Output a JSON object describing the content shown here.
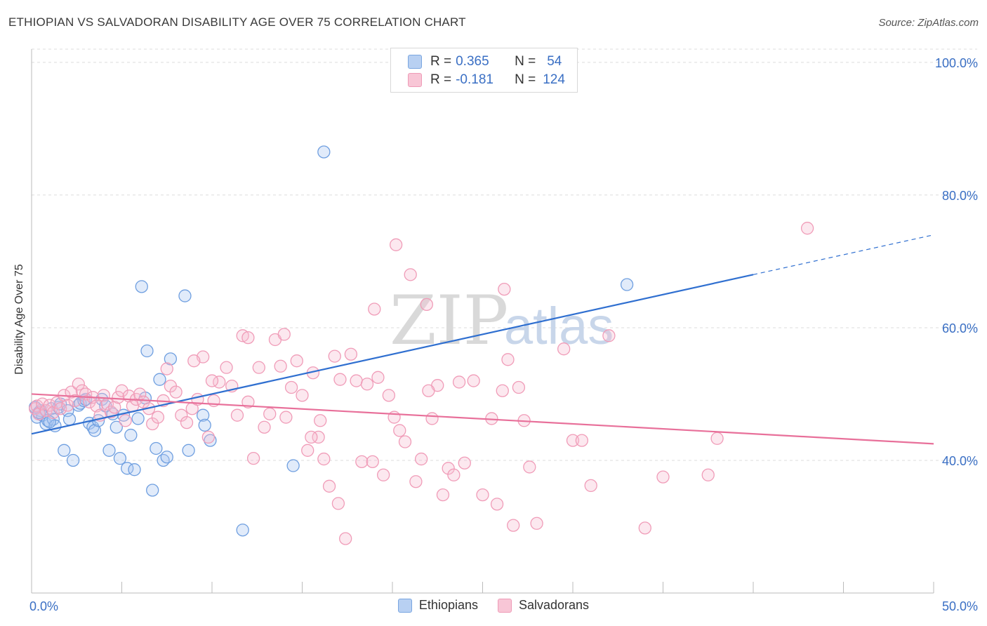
{
  "header": {
    "title": "ETHIOPIAN VS SALVADORAN DISABILITY AGE OVER 75 CORRELATION CHART",
    "source": "Source: ZipAtlas.com"
  },
  "watermark": {
    "zip": "ZIP",
    "atlas": "atlas"
  },
  "legend": {
    "rows": [
      {
        "r_label": "R = ",
        "r_value": "0.365",
        "n_label": "N = ",
        "n_value": "54",
        "color": "#b8d0f2",
        "border": "#7aa6e0"
      },
      {
        "r_label": "R = ",
        "r_value": "-0.181",
        "n_label": "N = ",
        "n_value": "124",
        "color": "#f8c6d6",
        "border": "#ee9bb7"
      }
    ]
  },
  "chart_data": {
    "type": "scatter",
    "title": "ETHIOPIAN VS SALVADORAN DISABILITY AGE OVER 75 CORRELATION CHART",
    "xlabel": "",
    "ylabel": "Disability Age Over 75",
    "xlim": [
      0,
      50
    ],
    "ylim": [
      20,
      102
    ],
    "x_tick_labels": [
      "0.0%",
      "50.0%"
    ],
    "y_ticks": [
      40,
      60,
      80,
      100
    ],
    "y_tick_labels": [
      "40.0%",
      "60.0%",
      "80.0%",
      "100.0%"
    ],
    "grid": true,
    "legend_position": "top-center",
    "series": [
      {
        "name": "Ethiopians",
        "color": "#6f9fe0",
        "line_color": "#2f6fd0",
        "trend": {
          "x": [
            0,
            40
          ],
          "y": [
            44.0,
            68.0
          ],
          "dashed_to": [
            50,
            74.0
          ]
        },
        "points": [
          [
            0.3,
            46.5
          ],
          [
            0.5,
            47.5
          ],
          [
            0.6,
            46.8
          ],
          [
            0.8,
            45.5
          ],
          [
            0.9,
            46.0
          ],
          [
            1.1,
            47.8
          ],
          [
            1.2,
            46.2
          ],
          [
            1.3,
            45.2
          ],
          [
            1.5,
            48.0
          ],
          [
            1.6,
            48.5
          ],
          [
            1.8,
            41.5
          ],
          [
            2.0,
            47.5
          ],
          [
            2.1,
            46.2
          ],
          [
            2.3,
            40.0
          ],
          [
            2.6,
            48.3
          ],
          [
            2.7,
            48.6
          ],
          [
            2.9,
            49.0
          ],
          [
            3.0,
            49.2
          ],
          [
            3.2,
            45.6
          ],
          [
            3.4,
            45.0
          ],
          [
            3.5,
            44.5
          ],
          [
            3.7,
            46.0
          ],
          [
            3.9,
            49.2
          ],
          [
            4.1,
            48.2
          ],
          [
            4.3,
            41.5
          ],
          [
            4.5,
            47.0
          ],
          [
            4.7,
            45.0
          ],
          [
            4.9,
            40.3
          ],
          [
            5.1,
            46.8
          ],
          [
            5.3,
            38.8
          ],
          [
            5.5,
            43.8
          ],
          [
            5.7,
            38.6
          ],
          [
            5.9,
            46.3
          ],
          [
            6.1,
            66.2
          ],
          [
            6.3,
            49.4
          ],
          [
            6.4,
            56.5
          ],
          [
            6.7,
            35.5
          ],
          [
            6.9,
            41.8
          ],
          [
            7.1,
            52.2
          ],
          [
            7.3,
            40.0
          ],
          [
            7.5,
            40.5
          ],
          [
            7.7,
            55.3
          ],
          [
            8.5,
            64.8
          ],
          [
            8.7,
            41.5
          ],
          [
            9.5,
            46.8
          ],
          [
            9.6,
            45.3
          ],
          [
            9.9,
            43.0
          ],
          [
            11.7,
            29.5
          ],
          [
            14.5,
            39.2
          ],
          [
            16.2,
            86.5
          ],
          [
            33.0,
            66.5
          ],
          [
            0.2,
            48.0
          ],
          [
            1.0,
            45.8
          ],
          [
            0.4,
            47.2
          ]
        ]
      },
      {
        "name": "Salvadorans",
        "color": "#f09cb8",
        "line_color": "#e8709a",
        "trend": {
          "x": [
            0,
            50
          ],
          "y": [
            50.0,
            42.5
          ]
        },
        "points": [
          [
            0.2,
            47.8
          ],
          [
            0.3,
            48.2
          ],
          [
            0.4,
            47.0
          ],
          [
            0.6,
            48.5
          ],
          [
            0.8,
            47.5
          ],
          [
            1.0,
            48.3
          ],
          [
            1.2,
            47.2
          ],
          [
            1.4,
            48.7
          ],
          [
            1.6,
            47.8
          ],
          [
            1.8,
            49.8
          ],
          [
            2.0,
            48.3
          ],
          [
            2.2,
            50.3
          ],
          [
            2.4,
            49.0
          ],
          [
            2.6,
            51.5
          ],
          [
            2.8,
            50.5
          ],
          [
            3.0,
            50.0
          ],
          [
            3.2,
            48.8
          ],
          [
            3.4,
            49.5
          ],
          [
            3.6,
            48.2
          ],
          [
            3.8,
            46.8
          ],
          [
            4.0,
            49.8
          ],
          [
            4.2,
            48.5
          ],
          [
            4.4,
            47.3
          ],
          [
            4.6,
            48.0
          ],
          [
            4.8,
            49.5
          ],
          [
            5.0,
            50.5
          ],
          [
            5.2,
            46.0
          ],
          [
            5.4,
            49.7
          ],
          [
            5.6,
            48.2
          ],
          [
            5.8,
            49.2
          ],
          [
            6.0,
            50.0
          ],
          [
            6.2,
            48.8
          ],
          [
            6.5,
            47.8
          ],
          [
            6.7,
            45.5
          ],
          [
            7.0,
            46.5
          ],
          [
            7.3,
            49.0
          ],
          [
            7.5,
            53.8
          ],
          [
            7.7,
            51.2
          ],
          [
            8.0,
            50.3
          ],
          [
            8.3,
            46.8
          ],
          [
            8.6,
            45.7
          ],
          [
            8.9,
            47.8
          ],
          [
            9.2,
            49.2
          ],
          [
            9.5,
            55.6
          ],
          [
            9.8,
            43.5
          ],
          [
            10.1,
            49.0
          ],
          [
            10.4,
            51.8
          ],
          [
            10.8,
            54.0
          ],
          [
            11.1,
            51.2
          ],
          [
            11.4,
            46.8
          ],
          [
            11.7,
            58.8
          ],
          [
            12.0,
            48.8
          ],
          [
            12.3,
            40.3
          ],
          [
            12.6,
            54.0
          ],
          [
            12.9,
            45.0
          ],
          [
            13.2,
            47.0
          ],
          [
            13.5,
            58.2
          ],
          [
            13.8,
            54.2
          ],
          [
            14.1,
            46.5
          ],
          [
            14.4,
            51.0
          ],
          [
            14.7,
            55.0
          ],
          [
            15.0,
            49.8
          ],
          [
            15.3,
            41.5
          ],
          [
            15.6,
            53.2
          ],
          [
            15.9,
            43.5
          ],
          [
            16.2,
            40.2
          ],
          [
            16.5,
            36.1
          ],
          [
            16.8,
            55.7
          ],
          [
            17.1,
            52.2
          ],
          [
            17.4,
            28.2
          ],
          [
            17.7,
            56.0
          ],
          [
            18.0,
            52.0
          ],
          [
            18.3,
            39.8
          ],
          [
            18.6,
            51.5
          ],
          [
            18.9,
            39.8
          ],
          [
            19.2,
            52.5
          ],
          [
            19.5,
            37.8
          ],
          [
            19.8,
            49.8
          ],
          [
            20.1,
            46.5
          ],
          [
            20.4,
            44.5
          ],
          [
            20.7,
            42.8
          ],
          [
            21.0,
            68.0
          ],
          [
            21.3,
            36.8
          ],
          [
            21.6,
            40.2
          ],
          [
            21.9,
            63.5
          ],
          [
            22.2,
            46.3
          ],
          [
            22.5,
            51.3
          ],
          [
            22.8,
            34.8
          ],
          [
            23.1,
            38.8
          ],
          [
            23.4,
            37.8
          ],
          [
            23.7,
            51.8
          ],
          [
            24.0,
            39.6
          ],
          [
            25.5,
            46.3
          ],
          [
            25.8,
            33.4
          ],
          [
            26.1,
            50.5
          ],
          [
            26.4,
            55.2
          ],
          [
            26.7,
            30.2
          ],
          [
            27.0,
            51.0
          ],
          [
            27.3,
            46.0
          ],
          [
            27.6,
            39.0
          ],
          [
            29.5,
            56.8
          ],
          [
            30.0,
            43.0
          ],
          [
            31.0,
            36.2
          ],
          [
            32.0,
            58.8
          ],
          [
            34.0,
            29.8
          ],
          [
            35.0,
            37.5
          ],
          [
            37.5,
            37.8
          ],
          [
            38.0,
            43.3
          ],
          [
            43.0,
            75.0
          ],
          [
            12.0,
            58.5
          ],
          [
            16.0,
            46.0
          ],
          [
            15.5,
            43.5
          ],
          [
            22.0,
            50.5
          ],
          [
            24.5,
            52.0
          ],
          [
            28.0,
            30.5
          ],
          [
            30.5,
            43.0
          ],
          [
            20.2,
            72.5
          ],
          [
            19.0,
            62.8
          ],
          [
            26.2,
            65.8
          ],
          [
            14.0,
            59.0
          ],
          [
            17.0,
            33.5
          ],
          [
            25.0,
            34.8
          ],
          [
            10.0,
            52.0
          ],
          [
            9.0,
            55.0
          ]
        ]
      }
    ]
  },
  "bottom_legend": {
    "items": [
      "Ethiopians",
      "Salvadorans"
    ]
  }
}
